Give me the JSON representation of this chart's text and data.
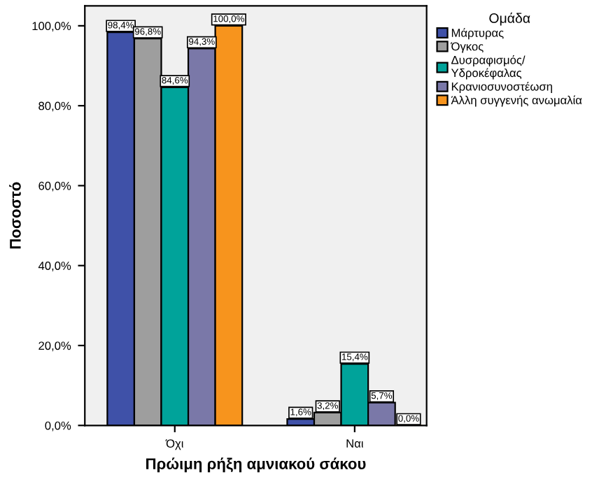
{
  "chart_data": {
    "type": "bar",
    "xlabel": "Πρώιμη ρήξη αμνιακού σάκου",
    "ylabel": "Ποσοστό",
    "legend_title": "Ομάδα",
    "legend": "right",
    "categories": [
      "Όχι",
      "Ναι"
    ],
    "series": [
      {
        "name": "Μάρτυρας",
        "color": "#3f51a8",
        "values": [
          98.4,
          1.6
        ],
        "value_labels": [
          "98,4%",
          "1,6%"
        ]
      },
      {
        "name": "Όγκος",
        "color": "#9e9e9e",
        "values": [
          96.8,
          3.2
        ],
        "value_labels": [
          "96,8%",
          "3,2%"
        ]
      },
      {
        "name": "Δυσραφισμός/\nΥδροκέφαλας",
        "color": "#00a39a",
        "values": [
          84.6,
          15.4
        ],
        "value_labels": [
          "84,6%",
          "15,4%"
        ]
      },
      {
        "name": "Κρανιοσυνοστέωση",
        "color": "#7a78a8",
        "values": [
          94.3,
          5.7
        ],
        "value_labels": [
          "94,3%",
          "5,7%"
        ]
      },
      {
        "name": "Άλλη συγγενής ανωμαλία",
        "color": "#f7941d",
        "values": [
          100.0,
          0.0
        ],
        "value_labels": [
          "100,0%",
          "0,0%"
        ]
      }
    ],
    "ylim": [
      0,
      105
    ],
    "yticks": [
      {
        "value": 0,
        "label": "0,0%"
      },
      {
        "value": 20,
        "label": "20,0%"
      },
      {
        "value": 40,
        "label": "40,0%"
      },
      {
        "value": 60,
        "label": "60,0%"
      },
      {
        "value": 80,
        "label": "80,0%"
      },
      {
        "value": 100,
        "label": "100,0%"
      }
    ],
    "grid": false
  }
}
